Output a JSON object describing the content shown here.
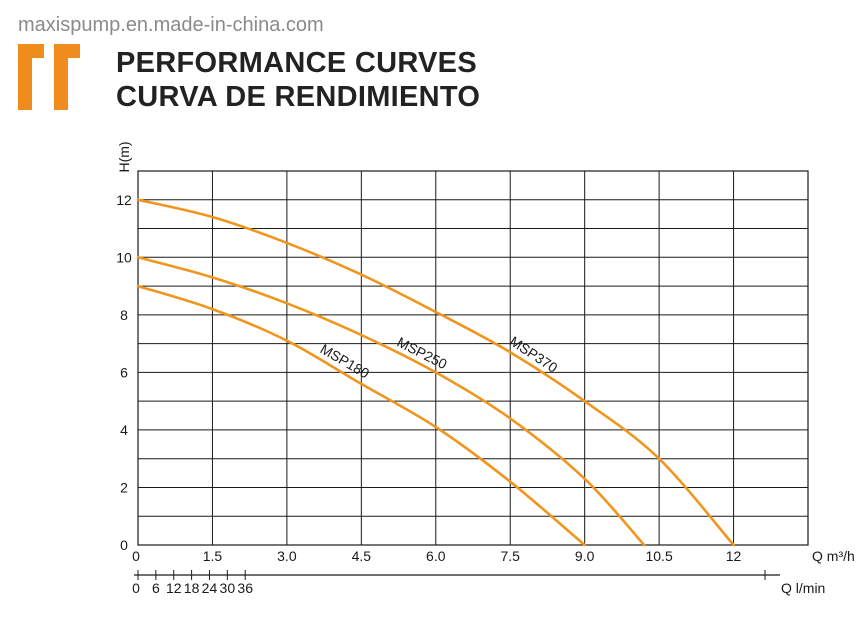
{
  "watermark": "maxispump.en.made-in-china.com",
  "header": {
    "title_line1": "PERFORMANCE CURVES",
    "title_line2": "CURVA DE RENDIMIENTO"
  },
  "colors": {
    "accent": "#F08C1E",
    "curve": "#F0961E",
    "grid": "#1a1a1a"
  },
  "chart_data": {
    "type": "line",
    "ylabel": "H(m)",
    "xlabel": "Q m³/h",
    "xlabel2": "Q l/min",
    "xlim": [
      0,
      13.5
    ],
    "ylim": [
      0,
      13
    ],
    "yticks": [
      "0",
      "2",
      "4",
      "6",
      "8",
      "10",
      "12"
    ],
    "xticks": [
      "0",
      "1.5",
      "3.0",
      "4.5",
      "6.0",
      "7.5",
      "9.0",
      "10.5",
      "12"
    ],
    "xticks2": [
      "0",
      "6",
      "12",
      "18",
      "24",
      "30",
      "36"
    ],
    "grid": true,
    "series": [
      {
        "name": "MSP180",
        "x": [
          0,
          1.5,
          3.0,
          4.5,
          6.0,
          7.5,
          9.0
        ],
        "y": [
          9.0,
          8.2,
          7.1,
          5.6,
          4.1,
          2.2,
          0
        ]
      },
      {
        "name": "MSP250",
        "x": [
          0,
          1.5,
          3.0,
          4.5,
          6.0,
          7.5,
          9.0,
          10.2
        ],
        "y": [
          10.0,
          9.3,
          8.4,
          7.3,
          6.0,
          4.4,
          2.3,
          0
        ]
      },
      {
        "name": "MSP370",
        "x": [
          0,
          1.5,
          3.0,
          4.5,
          6.0,
          7.5,
          9.0,
          10.5,
          12.0
        ],
        "y": [
          12.0,
          11.4,
          10.5,
          9.4,
          8.1,
          6.7,
          5.0,
          3.0,
          0
        ]
      }
    ]
  }
}
